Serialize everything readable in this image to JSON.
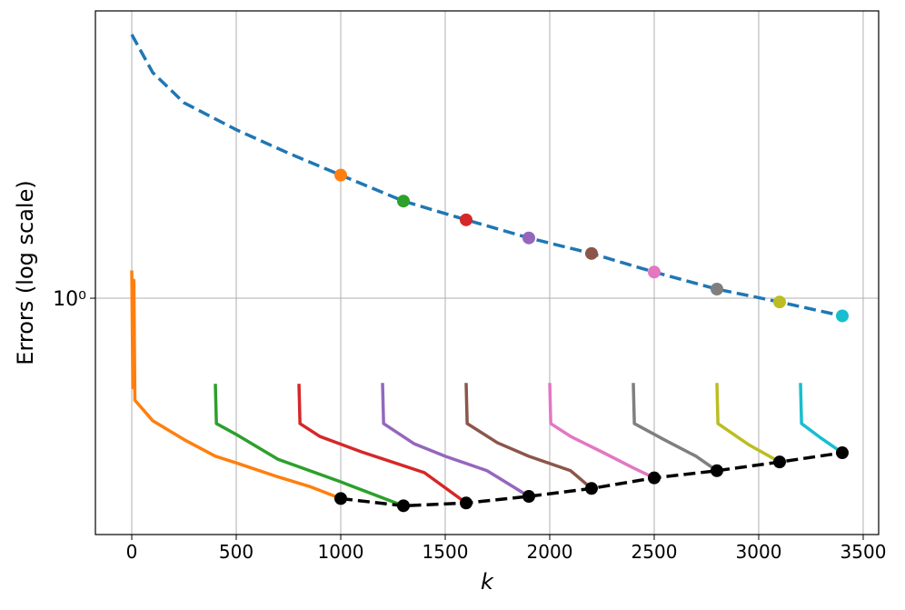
{
  "chart_data": {
    "type": "line",
    "x_label": "k",
    "y_label": "Errors (log scale)",
    "xlim": [
      -174,
      3574
    ],
    "ylim": [
      0.283,
      4.64
    ],
    "xticks": [
      0,
      500,
      1000,
      1500,
      2000,
      2500,
      3000,
      3500
    ],
    "yticks": [
      {
        "value": 1,
        "label": "10⁰"
      }
    ],
    "log_y": true,
    "grid": true,
    "series": [
      {
        "color": "#1f77b4",
        "dashed": true,
        "marker": false,
        "x": [
          0,
          100,
          250,
          500,
          750,
          1000,
          1300,
          1600,
          1900,
          2200,
          2500,
          2800,
          3100,
          3400
        ],
        "values": [
          4.09,
          3.34,
          2.84,
          2.46,
          2.17,
          1.93,
          1.68,
          1.52,
          1.38,
          1.27,
          1.15,
          1.05,
          0.98,
          0.91
        ]
      },
      {
        "color": "#ff7f0e",
        "dashed": false,
        "marker": false,
        "x": [
          0,
          5,
          10,
          15,
          100,
          250,
          400,
          500,
          700,
          850,
          1000
        ],
        "values": [
          1.16,
          0.62,
          1.1,
          0.58,
          0.52,
          0.47,
          0.43,
          0.415,
          0.385,
          0.366,
          0.343
        ]
      },
      {
        "color": "#2ca02c",
        "dashed": false,
        "marker": false,
        "x": [
          400,
          405,
          500,
          700,
          1000,
          1300
        ],
        "values": [
          0.633,
          0.512,
          0.483,
          0.423,
          0.375,
          0.33
        ]
      },
      {
        "color": "#d62728",
        "dashed": false,
        "marker": false,
        "x": [
          800,
          805,
          900,
          1100,
          1400,
          1600
        ],
        "values": [
          0.633,
          0.512,
          0.478,
          0.44,
          0.394,
          0.335
        ]
      },
      {
        "color": "#9467bd",
        "dashed": false,
        "marker": false,
        "x": [
          1200,
          1205,
          1350,
          1500,
          1700,
          1900
        ],
        "values": [
          0.636,
          0.512,
          0.46,
          0.43,
          0.398,
          0.347
        ]
      },
      {
        "color": "#8c564b",
        "dashed": false,
        "marker": false,
        "x": [
          1600,
          1605,
          1750,
          1900,
          2100,
          2200
        ],
        "values": [
          0.636,
          0.512,
          0.462,
          0.43,
          0.398,
          0.362
        ]
      },
      {
        "color": "#e377c2",
        "dashed": false,
        "marker": false,
        "x": [
          2000,
          2005,
          2100,
          2250,
          2400,
          2500
        ],
        "values": [
          0.636,
          0.512,
          0.478,
          0.44,
          0.404,
          0.383
        ]
      },
      {
        "color": "#7f7f7f",
        "dashed": false,
        "marker": false,
        "x": [
          2400,
          2405,
          2550,
          2700,
          2800
        ],
        "values": [
          0.636,
          0.512,
          0.469,
          0.43,
          0.398
        ]
      },
      {
        "color": "#bcbd22",
        "dashed": false,
        "marker": false,
        "x": [
          2800,
          2805,
          2950,
          3100
        ],
        "values": [
          0.636,
          0.512,
          0.458,
          0.417
        ]
      },
      {
        "color": "#17becf",
        "dashed": false,
        "marker": false,
        "x": [
          3200,
          3205,
          3300,
          3400
        ],
        "values": [
          0.636,
          0.512,
          0.473,
          0.438
        ]
      },
      {
        "color": "#000000",
        "dashed": true,
        "marker": true,
        "x": [
          1000,
          1300,
          1600,
          1900,
          2200,
          2500,
          2800,
          3100,
          3400
        ],
        "values": [
          0.343,
          0.33,
          0.335,
          0.347,
          0.362,
          0.383,
          0.398,
          0.417,
          0.438
        ]
      },
      {
        "color": "#1f77b4",
        "dashed": false,
        "marker": true,
        "line": false,
        "marker_colors": [
          "#ff7f0e",
          "#2ca02c",
          "#d62728",
          "#9467bd",
          "#8c564b",
          "#e377c2",
          "#7f7f7f",
          "#bcbd22",
          "#17becf"
        ],
        "x": [
          1000,
          1300,
          1600,
          1900,
          2200,
          2500,
          2800,
          3100,
          3400
        ],
        "values": [
          1.93,
          1.68,
          1.52,
          1.38,
          1.27,
          1.15,
          1.05,
          0.98,
          0.91
        ]
      }
    ]
  }
}
